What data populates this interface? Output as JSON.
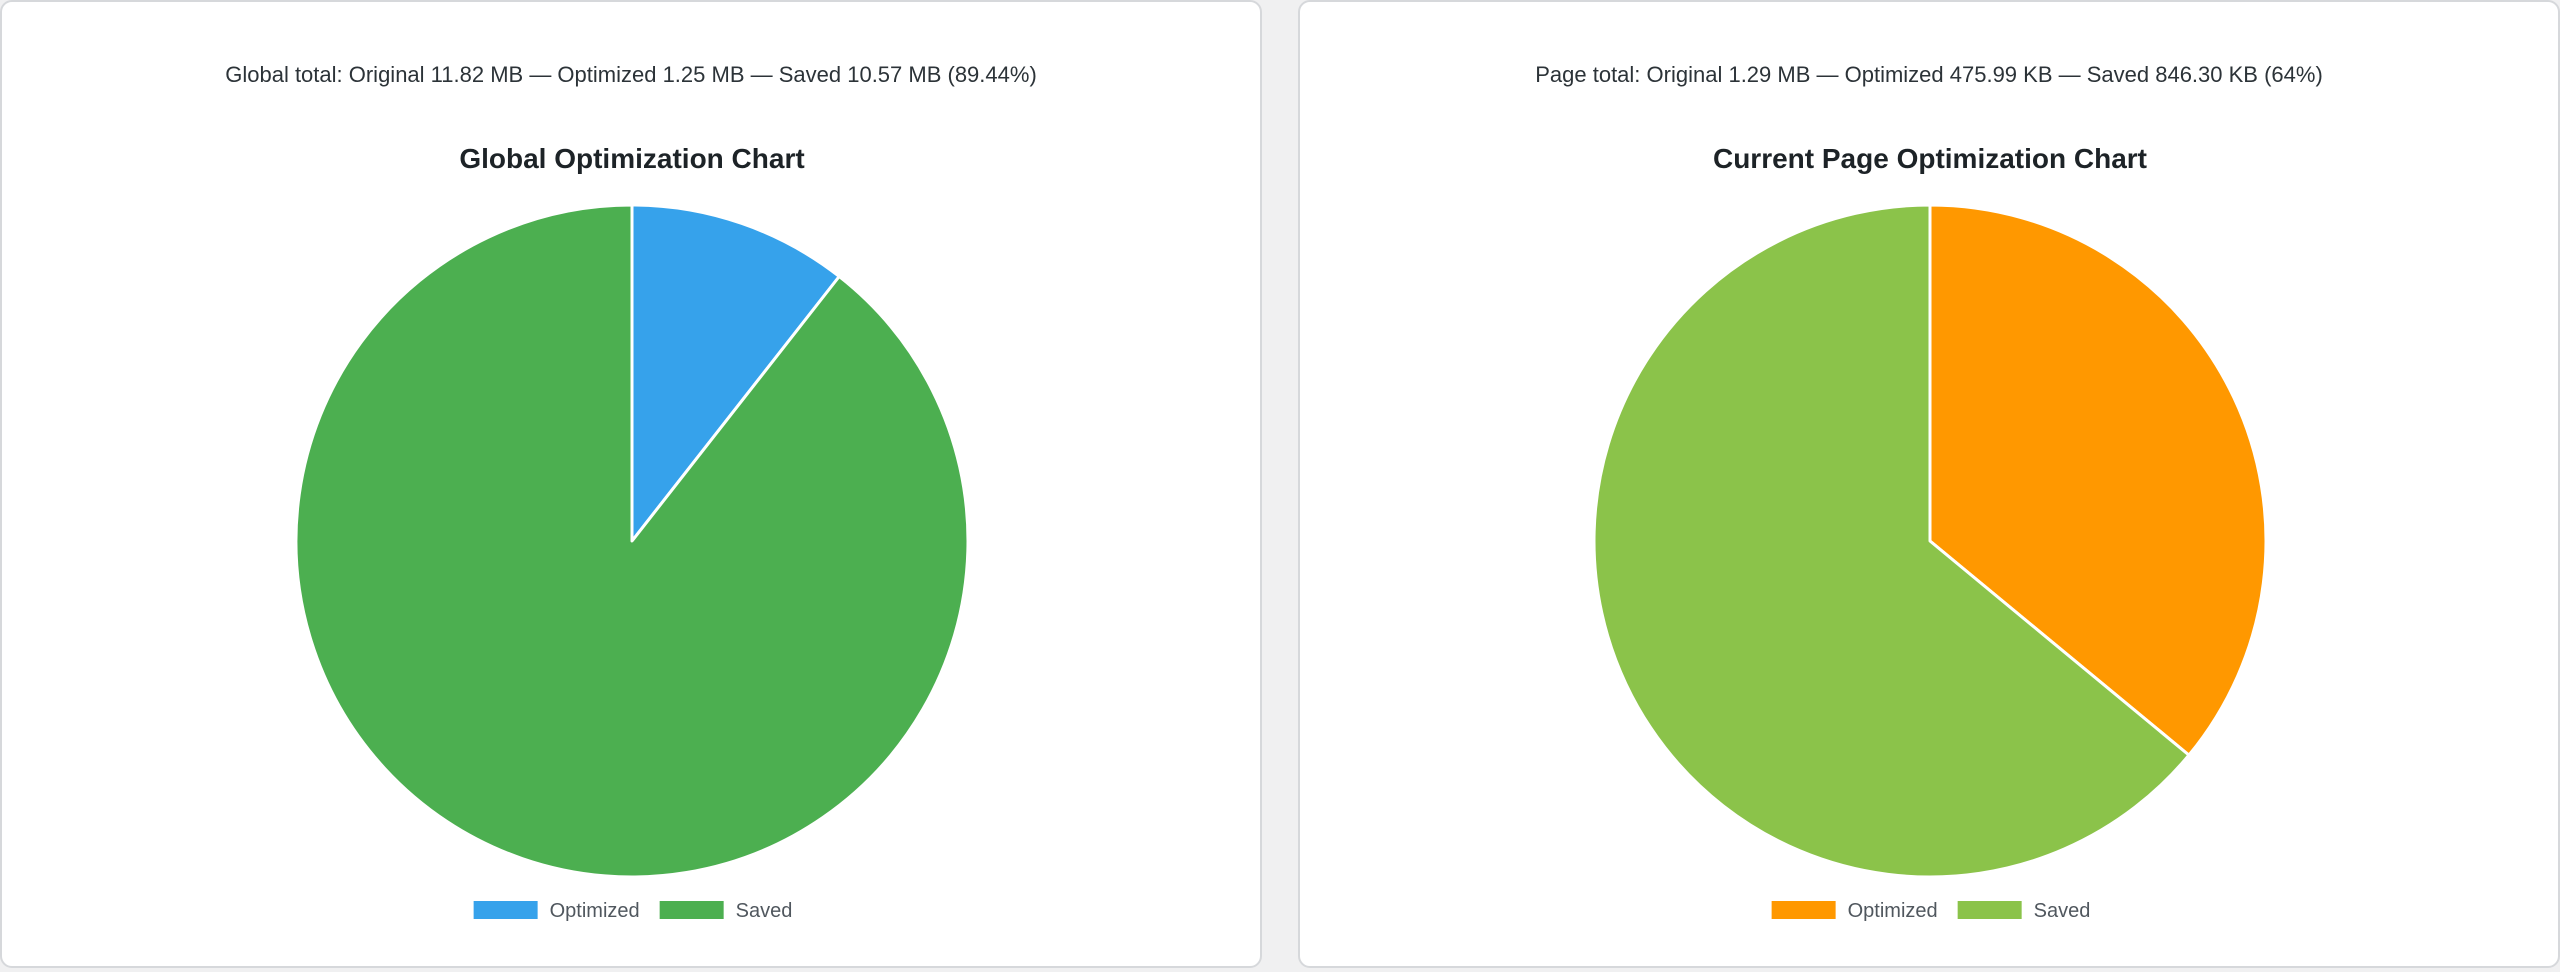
{
  "panels": [
    {
      "summary": "Global total: Original 11.82 MB — Optimized 1.25 MB — Saved 10.57 MB (89.44%)"
    },
    {
      "summary": "Page total: Original 1.29 MB — Optimized 475.99 KB — Saved 846.30 KB (64%)"
    }
  ],
  "chart_data": [
    {
      "type": "pie",
      "title": "Global Optimization Chart",
      "categories": [
        "Optimized",
        "Saved"
      ],
      "values": [
        1.25,
        10.57
      ],
      "unit": "MB",
      "colors": [
        "#36a2eb",
        "#4caf50"
      ],
      "legend": "bottom"
    },
    {
      "type": "pie",
      "title": "Current Page Optimization Chart",
      "categories": [
        "Optimized",
        "Saved"
      ],
      "values": [
        475.99,
        846.3
      ],
      "unit": "KB",
      "colors": [
        "#ff9800",
        "#8bc34a"
      ],
      "legend": "bottom"
    }
  ]
}
